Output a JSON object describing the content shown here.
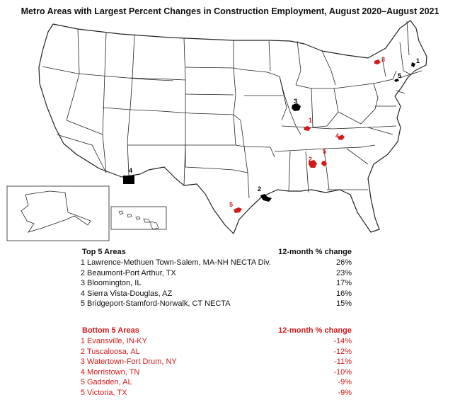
{
  "title": "Metro Areas with Largest Percent Changes in Construction Employment, August 2020–August 2021",
  "colors": {
    "increase": "#000000",
    "decrease": "#d11a1a",
    "state_border": "#222222"
  },
  "top": {
    "header_area": "Top 5 Areas",
    "header_change": "12-month % change",
    "rows": [
      {
        "rank": "1",
        "name": "Lawrence-Methuen Town-Salem, MA-NH NECTA Div.",
        "change": "26%"
      },
      {
        "rank": "2",
        "name": "Beaumont-Port Arthur, TX",
        "change": "23%"
      },
      {
        "rank": "3",
        "name": "Bloomington, IL",
        "change": "17%"
      },
      {
        "rank": "4",
        "name": "Sierra Vista-Douglas, AZ",
        "change": "16%"
      },
      {
        "rank": "5",
        "name": "Bridgeport-Stamford-Norwalk, CT NECTA",
        "change": "15%"
      }
    ]
  },
  "bottom": {
    "header_area": "Bottom 5 Areas",
    "header_change": "12-month % change",
    "rows": [
      {
        "rank": "1",
        "name": "Evansville, IN-KY",
        "change": "-14%"
      },
      {
        "rank": "2",
        "name": "Tuscaloosa, AL",
        "change": "-12%"
      },
      {
        "rank": "3",
        "name": "Watertown-Fort Drum, NY",
        "change": "-11%"
      },
      {
        "rank": "4",
        "name": "Morristown, TN",
        "change": "-10%"
      },
      {
        "rank": "5",
        "name": "Gadsden, AL",
        "change": "-9%"
      },
      {
        "rank": "5",
        "name": "Victoria, TX",
        "change": "-9%"
      }
    ]
  },
  "map_labels": {
    "top": [
      "1",
      "2",
      "3",
      "4",
      "5"
    ],
    "bottom": [
      "1",
      "2",
      "3",
      "4",
      "5",
      "5"
    ]
  }
}
